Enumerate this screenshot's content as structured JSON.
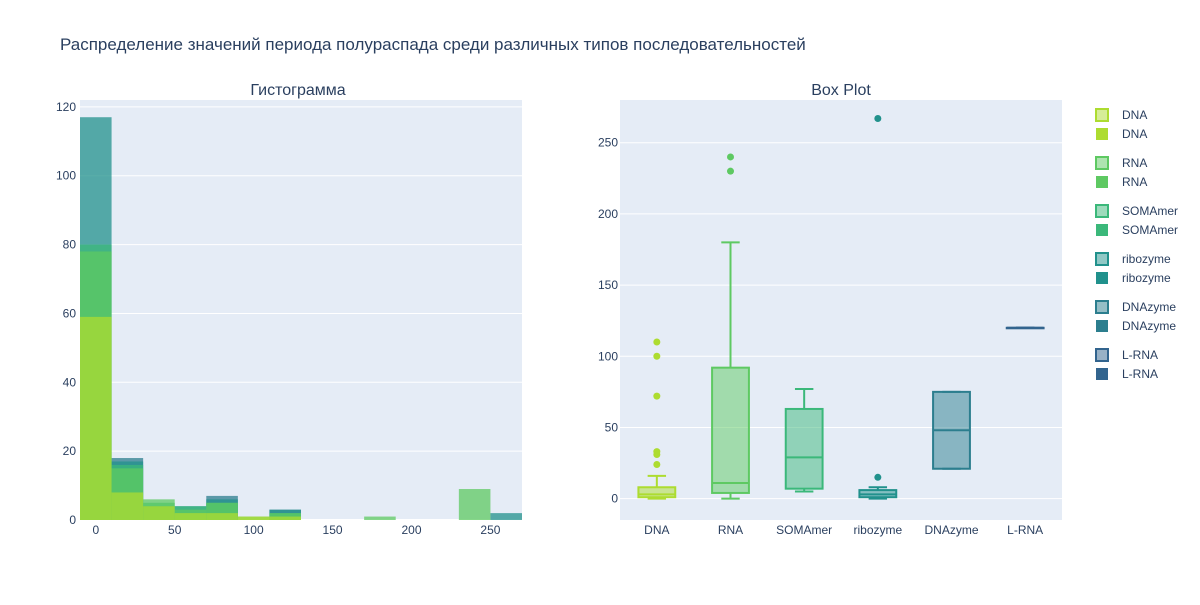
{
  "title": "Распределение значений периода полураспада среди различных типов последовательностей",
  "colors": {
    "plot_bg": "#e5ecf6",
    "DNA": "#addc30",
    "RNA": "#5ec962",
    "SOMAmer": "#3bb87a",
    "ribozyme": "#21918c",
    "DNAzyme": "#2c7e8e",
    "L-RNA": "#32648e"
  },
  "chart_data": [
    {
      "type": "bar",
      "subtitle": "Гистограмма",
      "barmode": "overlay",
      "xlim": [
        -10,
        270
      ],
      "ylim": [
        0,
        122
      ],
      "xticks": [
        0,
        50,
        100,
        150,
        200,
        250
      ],
      "yticks": [
        0,
        20,
        40,
        60,
        80,
        100,
        120
      ],
      "bins": [
        [
          -10,
          10
        ],
        [
          10,
          30
        ],
        [
          30,
          50
        ],
        [
          50,
          70
        ],
        [
          70,
          90
        ],
        [
          90,
          110
        ],
        [
          110,
          130
        ],
        [
          130,
          150
        ],
        [
          150,
          170
        ],
        [
          170,
          190
        ],
        [
          190,
          210
        ],
        [
          210,
          230
        ],
        [
          230,
          250
        ],
        [
          250,
          270
        ]
      ],
      "series": [
        {
          "name": "DNA",
          "values": [
            59,
            8,
            4,
            2,
            2,
            1,
            1,
            0,
            0,
            0,
            0,
            0,
            0,
            0
          ]
        },
        {
          "name": "RNA",
          "values": [
            78,
            15,
            6,
            3,
            5,
            1,
            2,
            0,
            0,
            1,
            0,
            0,
            9,
            0
          ]
        },
        {
          "name": "SOMAmer",
          "values": [
            80,
            16,
            5,
            4,
            5,
            0,
            2,
            0,
            0,
            0,
            0,
            0,
            0,
            0
          ]
        },
        {
          "name": "ribozyme",
          "values": [
            117,
            17,
            4,
            4,
            6,
            0,
            3,
            0,
            0,
            0,
            0,
            0,
            0,
            2
          ]
        },
        {
          "name": "DNAzyme",
          "values": [
            0,
            18,
            0,
            0,
            7,
            0,
            3,
            0,
            0,
            0,
            0,
            0,
            0,
            0
          ]
        },
        {
          "name": "L-RNA",
          "values": [
            0,
            0,
            0,
            0,
            0,
            0,
            0,
            0,
            0,
            0,
            0,
            0,
            0,
            0
          ]
        }
      ]
    },
    {
      "type": "box",
      "subtitle": "Box Plot",
      "ylim": [
        -15,
        280
      ],
      "yticks": [
        0,
        50,
        100,
        150,
        200,
        250
      ],
      "categories": [
        "DNA",
        "RNA",
        "SOMAmer",
        "ribozyme",
        "DNAzyme",
        "L-RNA"
      ],
      "boxes": [
        {
          "name": "DNA",
          "min": 0,
          "q1": 1,
          "median": 3,
          "q3": 8,
          "max": 16,
          "outliers": [
            24,
            31,
            33,
            72,
            100,
            110
          ]
        },
        {
          "name": "RNA",
          "min": 0,
          "q1": 4,
          "median": 11,
          "q3": 92,
          "max": 180,
          "outliers": [
            230,
            240
          ]
        },
        {
          "name": "SOMAmer",
          "min": 5,
          "q1": 7,
          "median": 29,
          "q3": 63,
          "max": 77,
          "outliers": []
        },
        {
          "name": "ribozyme",
          "min": 0,
          "q1": 1,
          "median": 3,
          "q3": 6,
          "max": 8,
          "outliers": [
            15,
            267
          ]
        },
        {
          "name": "DNAzyme",
          "min": 21,
          "q1": 21,
          "median": 48,
          "q3": 75,
          "max": 75,
          "outliers": []
        },
        {
          "name": "L-RNA",
          "min": 120,
          "q1": 120,
          "median": 120,
          "q3": 120,
          "max": 120,
          "outliers": []
        }
      ]
    }
  ],
  "legend": {
    "placement": "right",
    "groups": [
      "DNA",
      "RNA",
      "SOMAmer",
      "ribozyme",
      "DNAzyme",
      "L-RNA"
    ]
  }
}
